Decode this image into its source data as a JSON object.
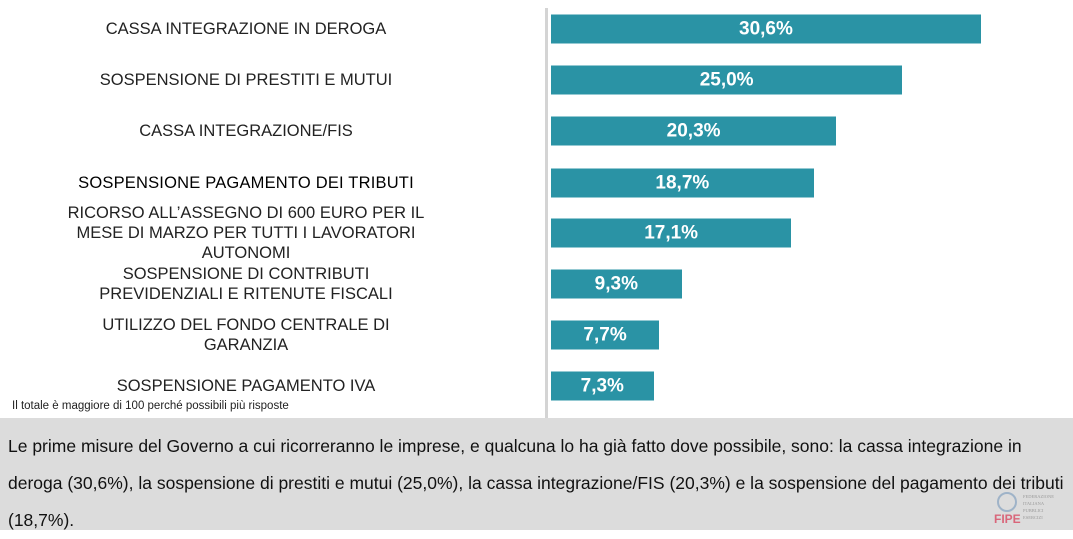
{
  "chart_data": {
    "type": "bar",
    "orientation": "horizontal",
    "categories": [
      "CASSA INTEGRAZIONE IN DEROGA",
      "SOSPENSIONE DI PRESTITI E MUTUI",
      "CASSA INTEGRAZIONE/FIS",
      "SOSPENSIONE PAGAMENTO DEI TRIBUTI",
      "RICORSO ALL’ASSEGNO DI 600 EURO PER IL MESE DI MARZO PER TUTTI I LAVORATORI AUTONOMI",
      "SOSPENSIONE DI CONTRIBUTI PREVIDENZIALI E RITENUTE FISCALI",
      "UTILIZZO DEL FONDO CENTRALE DI GARANZIA",
      "SOSPENSIONE PAGAMENTO IVA"
    ],
    "values": [
      30.6,
      25.0,
      20.3,
      18.7,
      17.1,
      9.3,
      7.7,
      7.3
    ],
    "data_labels": [
      "30,6%",
      "25,0%",
      "20,3%",
      "18,7%",
      "17,1%",
      "9,3%",
      "7,7%",
      "7,3%"
    ],
    "bar_color": "#2a93a5",
    "grid": false,
    "footnote": "Il totale è maggiore di 100 perché possibili più risposte"
  },
  "caption": "Le prime misure del Governo a cui ricorreranno le imprese, e qualcuna lo ha già fatto dove possibile, sono: la cassa integrazione in deroga (30,6%), la sospensione di prestiti e mutui (25,0%), la cassa integrazione/FIS (20,3%) e la sospensione del pagamento dei tributi (18,7%).",
  "logo": {
    "text": "FIPE",
    "subtitle": "FEDERAZIONE ITALIANA PUBBLICI ESERCIZI"
  }
}
